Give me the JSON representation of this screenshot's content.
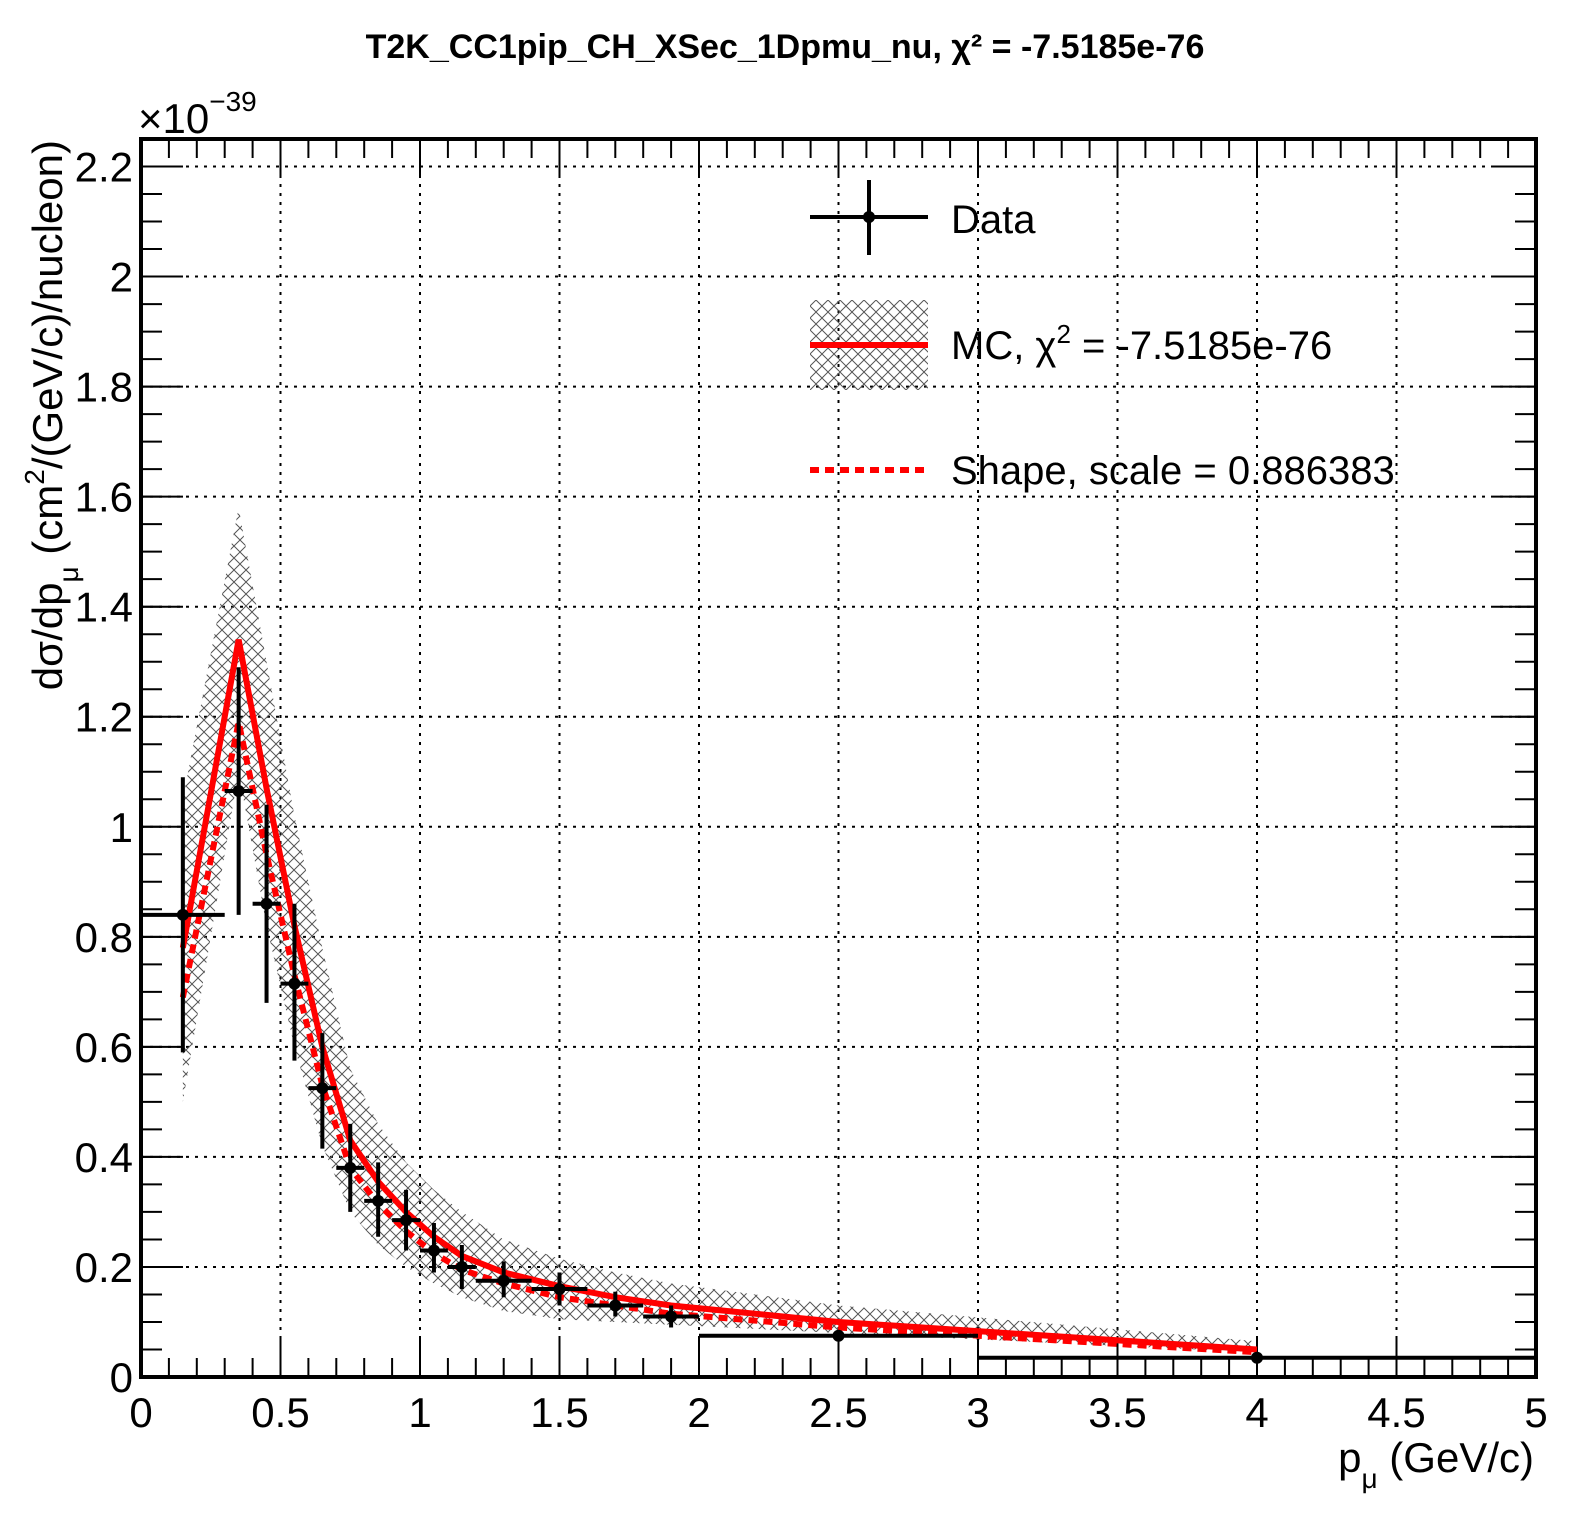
{
  "chart_data": {
    "type": "scatter",
    "title": "T2K_CC1pip_CH_XSec_1Dpmu_nu, χ² = -7.5185e-76",
    "xlabel": "p_μ (GeV/c)",
    "xlabel_main": "p",
    "xlabel_sub": "μ",
    "xlabel_unit": " (GeV/c)",
    "ylabel": "dσ/dp_μ (cm²/(GeV/c)/nucleon)",
    "ylabel_pre": "dσ/dp",
    "ylabel_sub": "μ",
    "ylabel_mid": " (cm",
    "ylabel_sup": "2",
    "ylabel_post": "/(GeV/c)/nucleon)",
    "y_exponent_label": "×10",
    "y_exponent": "−39",
    "xlim": [
      0,
      5
    ],
    "ylim": [
      0,
      2.25
    ],
    "x_ticks": [
      "0",
      "0.5",
      "1",
      "1.5",
      "2",
      "2.5",
      "3",
      "3.5",
      "4",
      "4.5",
      "5"
    ],
    "y_ticks": [
      "0",
      "0.2",
      "0.4",
      "0.6",
      "0.8",
      "1",
      "1.2",
      "1.4",
      "1.6",
      "1.8",
      "2",
      "2.2"
    ],
    "grid": true,
    "legend": {
      "position": "top-right",
      "data_label": "Data",
      "mc_label_pre": "MC, χ",
      "mc_label_sup": "2",
      "mc_label_post": " = -7.5185e-76",
      "shape_label": "Shape, scale = 0.886383"
    },
    "colors": {
      "data": "#000000",
      "mc": "#ff0000",
      "band": "#555555"
    },
    "series": [
      {
        "name": "Data",
        "style": "points_with_errors",
        "points": [
          {
            "x": 0.15,
            "xlo": 0.0,
            "xhi": 0.3,
            "y": 0.84,
            "ylo": 0.59,
            "yhi": 1.09
          },
          {
            "x": 0.35,
            "xlo": 0.3,
            "xhi": 0.4,
            "y": 1.065,
            "ylo": 0.84,
            "yhi": 1.29
          },
          {
            "x": 0.45,
            "xlo": 0.4,
            "xhi": 0.5,
            "y": 0.86,
            "ylo": 0.68,
            "yhi": 1.04
          },
          {
            "x": 0.55,
            "xlo": 0.5,
            "xhi": 0.6,
            "y": 0.715,
            "ylo": 0.575,
            "yhi": 0.86
          },
          {
            "x": 0.65,
            "xlo": 0.6,
            "xhi": 0.7,
            "y": 0.525,
            "ylo": 0.415,
            "yhi": 0.625
          },
          {
            "x": 0.75,
            "xlo": 0.7,
            "xhi": 0.8,
            "y": 0.38,
            "ylo": 0.3,
            "yhi": 0.46
          },
          {
            "x": 0.85,
            "xlo": 0.8,
            "xhi": 0.9,
            "y": 0.32,
            "ylo": 0.255,
            "yhi": 0.39
          },
          {
            "x": 0.95,
            "xlo": 0.9,
            "xhi": 1.0,
            "y": 0.285,
            "ylo": 0.23,
            "yhi": 0.34
          },
          {
            "x": 1.05,
            "xlo": 1.0,
            "xhi": 1.1,
            "y": 0.23,
            "ylo": 0.19,
            "yhi": 0.28
          },
          {
            "x": 1.15,
            "xlo": 1.1,
            "xhi": 1.2,
            "y": 0.2,
            "ylo": 0.16,
            "yhi": 0.24
          },
          {
            "x": 1.3,
            "xlo": 1.2,
            "xhi": 1.4,
            "y": 0.175,
            "ylo": 0.145,
            "yhi": 0.21
          },
          {
            "x": 1.5,
            "xlo": 1.4,
            "xhi": 1.6,
            "y": 0.16,
            "ylo": 0.13,
            "yhi": 0.19
          },
          {
            "x": 1.7,
            "xlo": 1.6,
            "xhi": 1.8,
            "y": 0.13,
            "ylo": 0.11,
            "yhi": 0.155
          },
          {
            "x": 1.9,
            "xlo": 1.8,
            "xhi": 2.0,
            "y": 0.11,
            "ylo": 0.09,
            "yhi": 0.13
          },
          {
            "x": 2.5,
            "xlo": 2.0,
            "xhi": 3.0,
            "y": 0.075,
            "ylo": 0.065,
            "yhi": 0.085
          },
          {
            "x": 4.0,
            "xlo": 3.0,
            "xhi": 5.0,
            "y": 0.035,
            "ylo": 0.03,
            "yhi": 0.04
          }
        ]
      },
      {
        "name": "MC, χ² = -7.5185e-76",
        "style": "solid_line",
        "x": [
          0.15,
          0.35,
          0.45,
          0.55,
          0.65,
          0.75,
          0.85,
          0.95,
          1.05,
          1.15,
          1.3,
          1.5,
          1.7,
          1.9,
          2.5,
          4.0
        ],
        "y": [
          0.78,
          1.34,
          1.07,
          0.82,
          0.6,
          0.43,
          0.355,
          0.3,
          0.255,
          0.22,
          0.19,
          0.165,
          0.145,
          0.13,
          0.1,
          0.05
        ],
        "band_lo": [
          0.5,
          1.1,
          0.82,
          0.6,
          0.42,
          0.3,
          0.24,
          0.2,
          0.17,
          0.145,
          0.12,
          0.105,
          0.1,
          0.095,
          0.08,
          0.045
        ],
        "band_hi": [
          1.05,
          1.58,
          1.3,
          1.02,
          0.78,
          0.56,
          0.46,
          0.39,
          0.34,
          0.3,
          0.25,
          0.215,
          0.19,
          0.17,
          0.13,
          0.065
        ]
      },
      {
        "name": "Shape, scale = 0.886383",
        "style": "dashed_line",
        "x": [
          0.15,
          0.35,
          0.45,
          0.55,
          0.65,
          0.75,
          0.85,
          0.95,
          1.05,
          1.15,
          1.3,
          1.5,
          1.7,
          1.9,
          2.5,
          4.0
        ],
        "y": [
          0.69,
          1.19,
          0.95,
          0.73,
          0.53,
          0.38,
          0.315,
          0.265,
          0.225,
          0.195,
          0.17,
          0.145,
          0.13,
          0.115,
          0.09,
          0.045
        ]
      }
    ]
  }
}
